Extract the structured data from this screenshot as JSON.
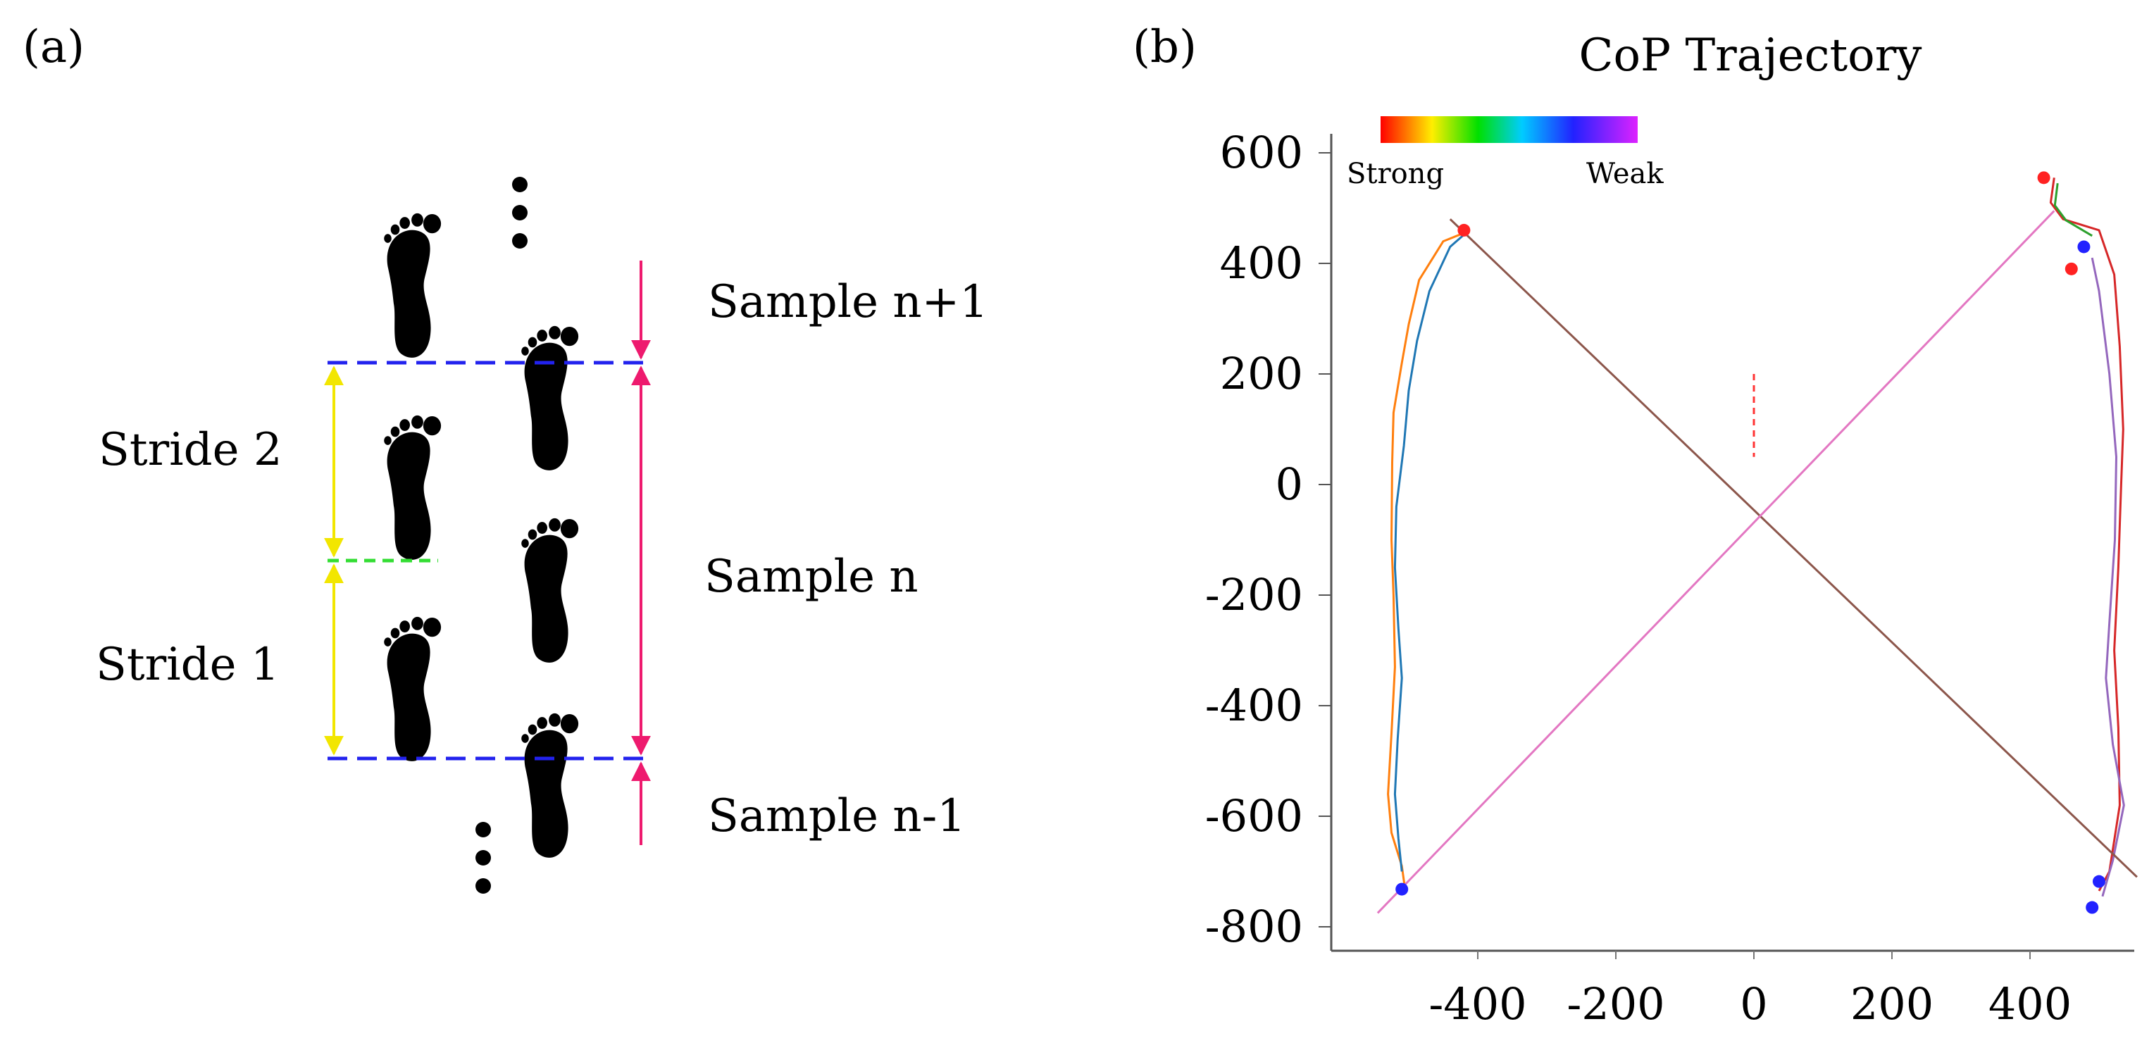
{
  "panel_a": {
    "label": "(a)",
    "stride_labels": [
      "Stride 2",
      "Stride 1"
    ],
    "sample_labels": [
      "Sample n+1",
      "Sample n",
      "Sample n-1"
    ],
    "colors": {
      "footprint": "#000000",
      "stride_arrow": "#f2e600",
      "stride_divider": "#33dd33",
      "sample_boundary": "#2222ee",
      "sample_arrow": "#ee1a6e"
    }
  },
  "panel_b": {
    "label": "(b)",
    "legend": {
      "strong": "Strong",
      "weak": "Weak"
    }
  },
  "chart_data": {
    "type": "line",
    "title": "CoP Trajectory",
    "xlabel": "",
    "ylabel": "",
    "xlim": [
      -610,
      570
    ],
    "ylim": [
      -830,
      640
    ],
    "x_ticks": [
      -400,
      -200,
      0,
      200,
      400
    ],
    "y_ticks": [
      600,
      400,
      200,
      0,
      -200,
      -400,
      -600,
      -800
    ],
    "grid": false,
    "legend": {
      "type": "colorbar",
      "position": "top-left",
      "from": "Strong",
      "to": "Weak"
    },
    "series": [
      {
        "name": "left foot trace A",
        "color": "#ff7f0e",
        "points": [
          [
            -420,
            455
          ],
          [
            -450,
            440
          ],
          [
            -485,
            370
          ],
          [
            -500,
            290
          ],
          [
            -510,
            220
          ],
          [
            -522,
            130
          ],
          [
            -524,
            40
          ],
          [
            -525,
            -100
          ],
          [
            -522,
            -200
          ],
          [
            -520,
            -330
          ],
          [
            -525,
            -450
          ],
          [
            -530,
            -560
          ],
          [
            -525,
            -630
          ],
          [
            -510,
            -690
          ],
          [
            -505,
            -735
          ]
        ]
      },
      {
        "name": "left foot trace B",
        "color": "#1f77b4",
        "points": [
          [
            -420,
            452
          ],
          [
            -440,
            430
          ],
          [
            -470,
            350
          ],
          [
            -488,
            260
          ],
          [
            -500,
            170
          ],
          [
            -507,
            70
          ],
          [
            -518,
            -40
          ],
          [
            -520,
            -150
          ],
          [
            -515,
            -260
          ],
          [
            -510,
            -350
          ],
          [
            -516,
            -460
          ],
          [
            -520,
            -560
          ],
          [
            -515,
            -640
          ],
          [
            -510,
            -700
          ]
        ]
      },
      {
        "name": "right foot trace red",
        "color": "#d62728",
        "points": [
          [
            435,
            555
          ],
          [
            430,
            510
          ],
          [
            448,
            480
          ],
          [
            500,
            460
          ],
          [
            522,
            380
          ],
          [
            530,
            250
          ],
          [
            535,
            100
          ],
          [
            532,
            0
          ],
          [
            528,
            -150
          ],
          [
            522,
            -300
          ],
          [
            528,
            -440
          ],
          [
            530,
            -580
          ],
          [
            515,
            -700
          ],
          [
            500,
            -735
          ]
        ]
      },
      {
        "name": "right foot trace green",
        "color": "#2ca02c",
        "points": [
          [
            440,
            545
          ],
          [
            436,
            505
          ],
          [
            452,
            478
          ],
          [
            490,
            450
          ]
        ]
      },
      {
        "name": "right foot trace purple",
        "color": "#9467bd",
        "points": [
          [
            490,
            410
          ],
          [
            500,
            350
          ],
          [
            515,
            200
          ],
          [
            525,
            50
          ],
          [
            523,
            -100
          ],
          [
            515,
            -250
          ],
          [
            510,
            -350
          ],
          [
            520,
            -470
          ],
          [
            536,
            -580
          ],
          [
            520,
            -680
          ],
          [
            505,
            -745
          ]
        ]
      },
      {
        "name": "diagonal brown",
        "color": "#8c564b",
        "points": [
          [
            -440,
            480
          ],
          [
            555,
            -710
          ]
        ]
      },
      {
        "name": "diagonal pink",
        "color": "#e377c2",
        "points": [
          [
            -545,
            -775
          ],
          [
            435,
            495
          ]
        ]
      },
      {
        "name": "center marker",
        "color": "#ff3333",
        "points": [
          [
            0,
            200
          ],
          [
            0,
            50
          ]
        ]
      }
    ],
    "markers": [
      {
        "x": -420,
        "y": 460,
        "color": "#ff2222"
      },
      {
        "x": 420,
        "y": 555,
        "color": "#ff2222"
      },
      {
        "x": 460,
        "y": 390,
        "color": "#ff2222"
      },
      {
        "x": 478,
        "y": 430,
        "color": "#2222ff"
      },
      {
        "x": -510,
        "y": -732,
        "color": "#2222ff"
      },
      {
        "x": 500,
        "y": -718,
        "color": "#2222ff"
      },
      {
        "x": 490,
        "y": -765,
        "color": "#2222ff"
      }
    ]
  }
}
